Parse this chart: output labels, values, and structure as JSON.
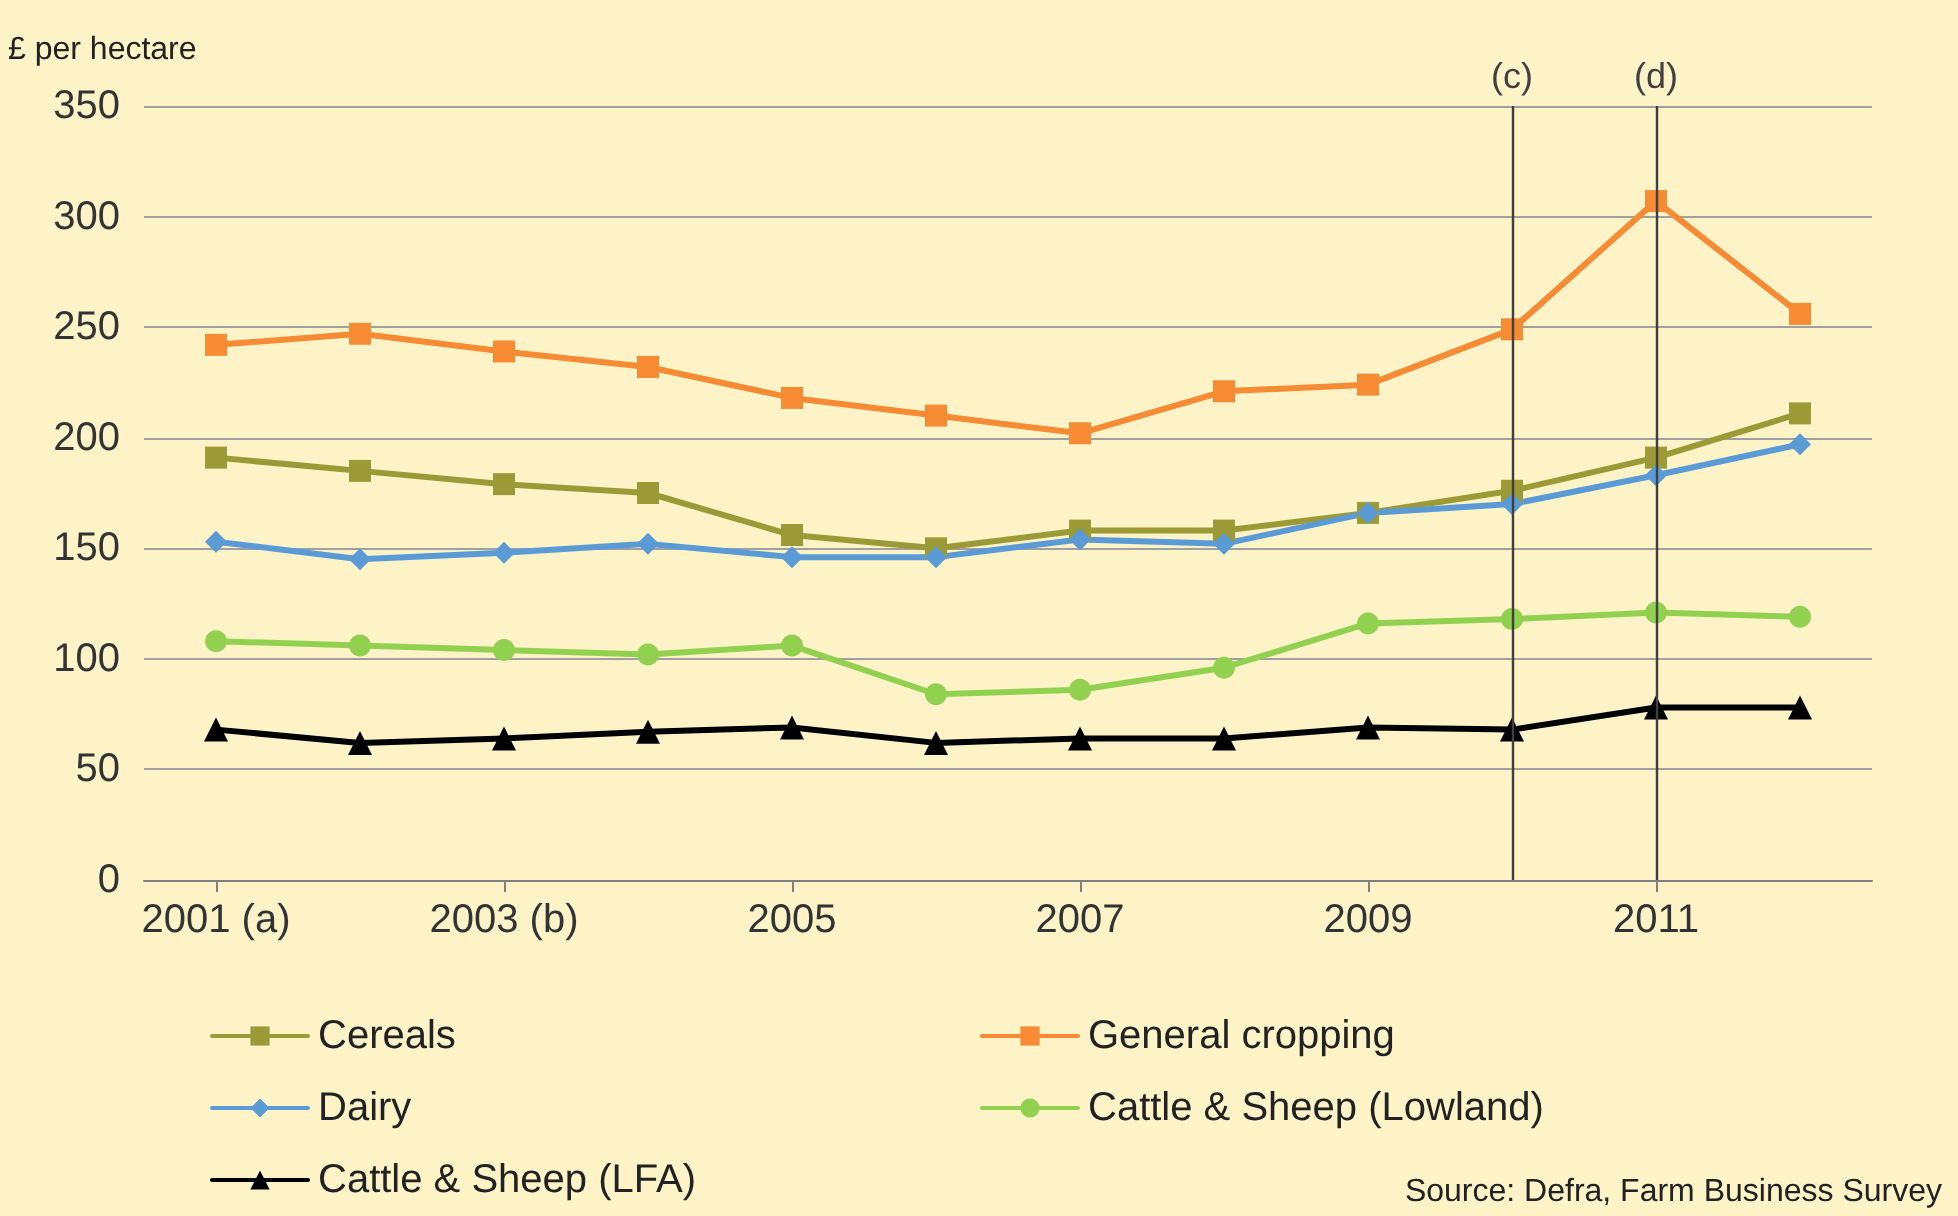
{
  "chart_data": {
    "type": "line",
    "ylabel": "£ per hectare",
    "x": [
      2001,
      2002,
      2003,
      2004,
      2005,
      2006,
      2007,
      2008,
      2009,
      2010,
      2011,
      2012
    ],
    "xlim": [
      2000.5,
      2012.5
    ],
    "xticks": [
      {
        "value": 2001,
        "label": "2001 (a)"
      },
      {
        "value": 2003,
        "label": "2003 (b)"
      },
      2005,
      2007,
      2009,
      2011
    ],
    "ylim": [
      0,
      350
    ],
    "yticks": [
      0,
      50,
      100,
      150,
      200,
      250,
      300,
      350
    ],
    "series": [
      {
        "name": "Cereals",
        "color": "#9c9a36",
        "marker": "square",
        "values": [
          191,
          185,
          179,
          175,
          156,
          150,
          158,
          158,
          166,
          176,
          191,
          211
        ]
      },
      {
        "name": "General cropping",
        "color": "#f68b33",
        "marker": "square",
        "values": [
          242,
          247,
          239,
          232,
          218,
          210,
          202,
          221,
          224,
          249,
          307,
          256
        ]
      },
      {
        "name": "Dairy",
        "color": "#5b9bd5",
        "marker": "diamond",
        "values": [
          153,
          145,
          148,
          152,
          146,
          146,
          154,
          152,
          166,
          170,
          183,
          197
        ]
      },
      {
        "name": "Cattle & Sheep (Lowland)",
        "color": "#92d050",
        "marker": "circle",
        "values": [
          108,
          106,
          104,
          102,
          106,
          84,
          86,
          96,
          116,
          118,
          121,
          119
        ]
      },
      {
        "name": "Cattle & Sheep (LFA)",
        "color": "#000000",
        "marker": "triangle",
        "values": [
          68,
          62,
          64,
          67,
          69,
          62,
          64,
          64,
          69,
          68,
          78,
          78
        ]
      }
    ],
    "ref_lines": [
      {
        "axis": "x",
        "value": 2010,
        "label": "(c)",
        "color": "#404040"
      },
      {
        "axis": "x",
        "value": 2011,
        "label": "(d)",
        "color": "#404040"
      }
    ],
    "annotations": [
      "Source: Defra, Farm Business Survey"
    ],
    "grid": "y",
    "legend": "bottom",
    "line_style": "solid"
  }
}
